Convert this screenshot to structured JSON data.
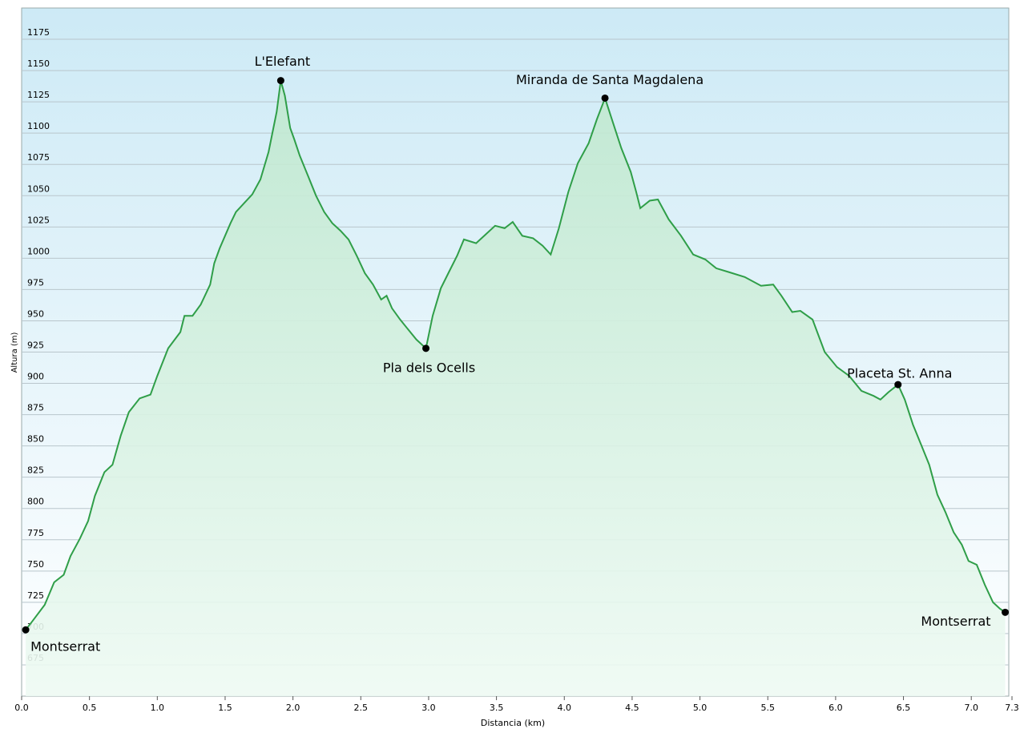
{
  "chart_data": {
    "type": "line",
    "y_label": "Altura (m)",
    "x_label": "Distancia  (km)",
    "x": [
      0.03,
      0.08,
      0.17,
      0.24,
      0.31,
      0.36,
      0.43,
      0.49,
      0.54,
      0.61,
      0.67,
      0.73,
      0.79,
      0.87,
      0.95,
      1.0,
      1.08,
      1.17,
      1.2,
      1.26,
      1.32,
      1.39,
      1.42,
      1.46,
      1.54,
      1.58,
      1.64,
      1.7,
      1.76,
      1.82,
      1.88,
      1.91,
      1.94,
      1.98,
      2.01,
      2.05,
      2.11,
      2.17,
      2.23,
      2.29,
      2.35,
      2.41,
      2.47,
      2.53,
      2.59,
      2.65,
      2.69,
      2.73,
      2.79,
      2.85,
      2.91,
      2.98,
      3.03,
      3.09,
      3.15,
      3.21,
      3.26,
      3.35,
      3.41,
      3.49,
      3.56,
      3.62,
      3.69,
      3.77,
      3.84,
      3.9,
      3.96,
      4.03,
      4.1,
      4.18,
      4.24,
      4.3,
      4.36,
      4.42,
      4.49,
      4.53,
      4.56,
      4.63,
      4.69,
      4.77,
      4.86,
      4.95,
      5.04,
      5.12,
      5.21,
      5.33,
      5.45,
      5.54,
      5.6,
      5.68,
      5.74,
      5.83,
      5.92,
      6.01,
      6.1,
      6.19,
      6.28,
      6.33,
      6.39,
      6.46,
      6.51,
      6.57,
      6.63,
      6.69,
      6.75,
      6.81,
      6.87,
      6.93,
      6.98,
      7.04,
      7.1,
      7.16,
      7.21,
      7.25
    ],
    "values": [
      703,
      710,
      723,
      741,
      747,
      762,
      776,
      790,
      810,
      829,
      835,
      858,
      877,
      888,
      891,
      906,
      928,
      941,
      954,
      954,
      963,
      979,
      996,
      1008,
      1028,
      1037,
      1044,
      1051,
      1063,
      1085,
      1117,
      1142,
      1130,
      1104,
      1095,
      1082,
      1066,
      1050,
      1037,
      1028,
      1022,
      1015,
      1002,
      988,
      979,
      967,
      970,
      960,
      951,
      943,
      935,
      928,
      954,
      976,
      989,
      1002,
      1015,
      1012,
      1018,
      1026,
      1024,
      1029,
      1018,
      1016,
      1010,
      1003,
      1024,
      1053,
      1076,
      1092,
      1111,
      1128,
      1108,
      1088,
      1069,
      1053,
      1040,
      1046,
      1047,
      1031,
      1018,
      1003,
      999,
      992,
      989,
      985,
      978,
      979,
      970,
      957,
      958,
      951,
      925,
      913,
      906,
      894,
      890,
      887,
      893,
      899,
      887,
      867,
      851,
      835,
      811,
      797,
      781,
      771,
      758,
      755,
      739,
      725,
      720,
      717
    ],
    "color": "#2f9e48",
    "xlim": [
      0,
      7.3
    ],
    "ylim": [
      650,
      1200
    ],
    "xticks": [
      {
        "value": 0,
        "label": "0.0"
      },
      0.5,
      {
        "value": 1,
        "label": "1.0"
      },
      1.5,
      {
        "value": 2,
        "label": "2.0"
      },
      2.5,
      {
        "value": 3,
        "label": "3.0"
      },
      3.5,
      {
        "value": 4,
        "label": "4.0"
      },
      4.5,
      {
        "value": 5,
        "label": "5.0"
      },
      5.5,
      {
        "value": 6,
        "label": "6.0"
      },
      6.5,
      {
        "value": 7,
        "label": "7.0"
      },
      7.3
    ],
    "yticks": [
      675,
      700,
      725,
      750,
      775,
      800,
      825,
      850,
      875,
      900,
      925,
      950,
      975,
      1000,
      1025,
      1050,
      1075,
      1100,
      1125,
      1150,
      1175
    ],
    "grid": true,
    "annotations": [
      {
        "text": "Montserrat",
        "x": 0.03,
        "y": 703
      },
      {
        "text": "L'Elefant",
        "x": 1.91,
        "y": 1142
      },
      {
        "text": "Pla dels Ocells",
        "x": 2.98,
        "y": 928
      },
      {
        "text": "Miranda de Santa Magdalena",
        "x": 4.3,
        "y": 1128
      },
      {
        "text": "Placeta St. Anna",
        "x": 6.46,
        "y": 899
      },
      {
        "text": "Montserrat",
        "x": 7.25,
        "y": 717
      }
    ]
  }
}
